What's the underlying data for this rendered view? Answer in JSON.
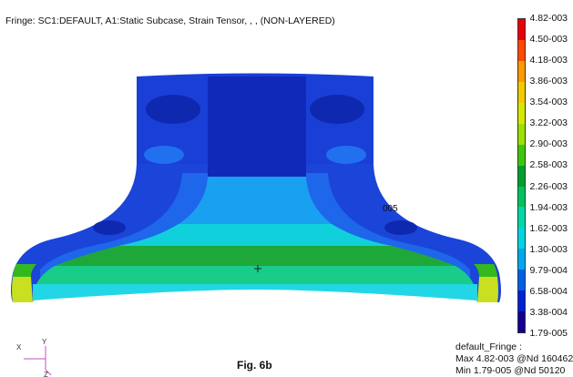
{
  "header": {
    "title": "Fringe: SC1:DEFAULT, A1:Static Subcase, Strain Tensor, , , (NON-LAYERED)"
  },
  "legend": {
    "ticks": [
      "4.82-003",
      "4.50-003",
      "4.18-003",
      "3.86-003",
      "3.54-003",
      "3.22-003",
      "2.90-003",
      "2.58-003",
      "2.26-003",
      "1.94-003",
      "1.62-003",
      "1.30-003",
      "9.79-004",
      "6.58-004",
      "3.38-004",
      "1.79-005"
    ],
    "colors": [
      "#e8000a",
      "#ff4a00",
      "#ff9a00",
      "#f2ca00",
      "#d7e800",
      "#9be200",
      "#3cc80a",
      "#00a02a",
      "#00c45a",
      "#00d8a8",
      "#00d6e2",
      "#00a8f0",
      "#0060e6",
      "#0022d2",
      "#120090"
    ]
  },
  "viewport": {
    "node_label": "005",
    "caption": "Fig. 6b",
    "triad": {
      "x": "X",
      "y": "Y",
      "z": "Z"
    }
  },
  "summary": {
    "name": "default_Fringe :",
    "max": "Max 4.82-003 @Nd 160462",
    "min": "Min 1.79-005 @Nd 50120"
  },
  "colors": {
    "background": "#ffffff",
    "deep_blue": "#1233c8",
    "mid_blue": "#1a5ce8",
    "cyan": "#00d0e0",
    "green": "#1ea43a",
    "yellow": "#d8e800"
  }
}
